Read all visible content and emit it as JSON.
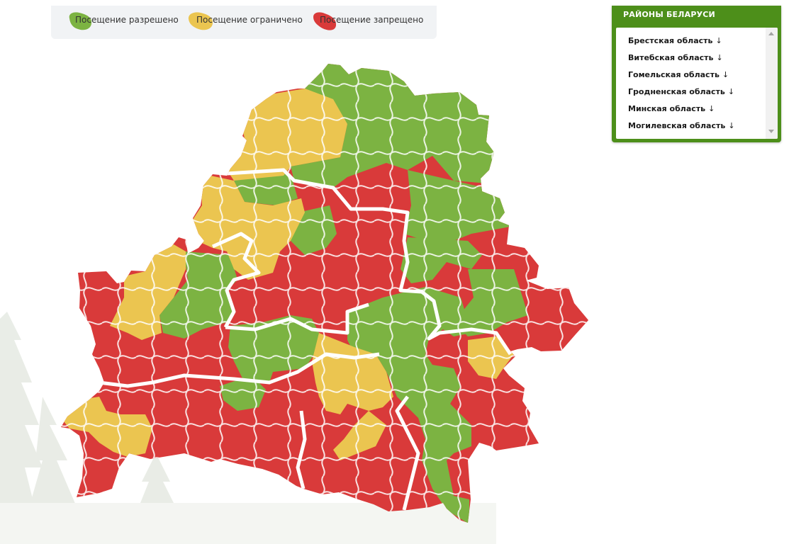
{
  "legend": {
    "allowed": "Посещение разрешено",
    "limited": "Посещение ограничено",
    "banned": "Посещение запрещено"
  },
  "colors": {
    "allowed": "#7cb342",
    "limited": "#ebc550",
    "banned": "#d93a3a",
    "panel_green": "#4d8f1a",
    "legend_bg": "#f1f3f5"
  },
  "panel": {
    "title": "РАЙОНЫ БЕЛАРУСИ",
    "regions": [
      {
        "label": "Брестская область",
        "arrow": "↓"
      },
      {
        "label": "Витебская область",
        "arrow": "↓"
      },
      {
        "label": "Гомельская область",
        "arrow": "↓"
      },
      {
        "label": "Гродненская область",
        "arrow": "↓"
      },
      {
        "label": "Минская область",
        "arrow": "↓"
      },
      {
        "label": "Могилевская область",
        "arrow": "↓"
      }
    ]
  },
  "map": {
    "district_status": [
      "allowed",
      "limited",
      "banned"
    ]
  }
}
